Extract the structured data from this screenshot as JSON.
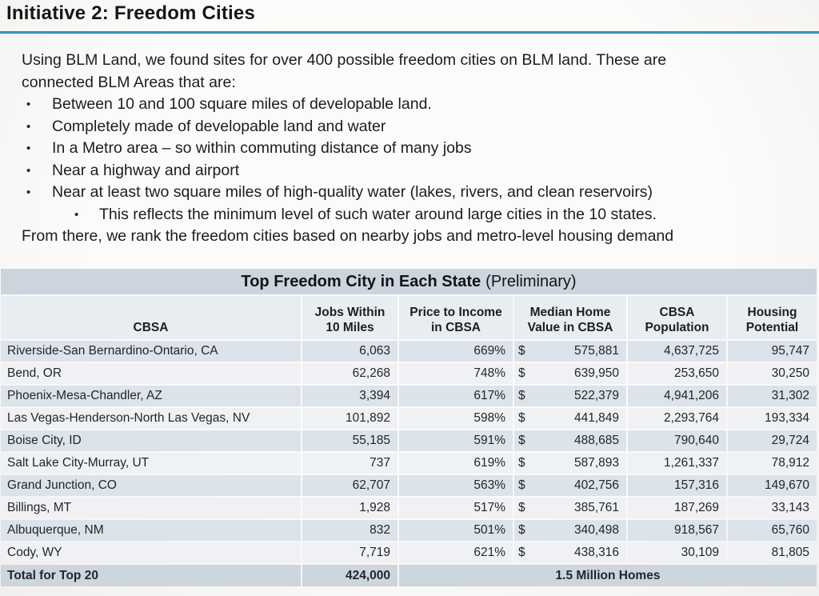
{
  "slide": {
    "title": "Initiative 2: Freedom Cities",
    "bullet_char": "•",
    "intro": [
      "Using BLM Land, we found sites for over 400 possible freedom cities on BLM land. These are",
      "connected BLM Areas that are:"
    ],
    "bullets": [
      "Between 10 and 100 square miles of developable land.",
      "Completely made of developable land and water",
      "In a Metro area – so within commuting distance of many jobs",
      "Near a highway and airport",
      "Near at least two square miles of high-quality water (lakes, rivers, and clean reservoirs)"
    ],
    "sub_bullet": "This reflects the minimum level of such water around large cities in the 10 states.",
    "closing": "From there, we rank the freedom cities based on nearby jobs and metro-level housing demand"
  },
  "table": {
    "title_bold": "Top Freedom City in Each State",
    "title_suffix": "(Preliminary)",
    "currency": "$",
    "columns": [
      {
        "lines": [
          "CBSA"
        ]
      },
      {
        "lines": [
          "Jobs Within",
          "10 Miles"
        ]
      },
      {
        "lines": [
          "Price to Income",
          "in CBSA"
        ]
      },
      {
        "lines": [
          "Median Home",
          "Value in  CBSA"
        ]
      },
      {
        "lines": [
          "CBSA",
          "Population"
        ]
      },
      {
        "lines": [
          "Housing",
          "Potential"
        ]
      }
    ],
    "rows": [
      {
        "cbsa": "Riverside-San Bernardino-Ontario, CA",
        "jobs": "6,063",
        "price": "669%",
        "median": "575,881",
        "population": "4,637,725",
        "housing": "95,747"
      },
      {
        "cbsa": "Bend, OR",
        "jobs": "62,268",
        "price": "748%",
        "median": "639,950",
        "population": "253,650",
        "housing": "30,250"
      },
      {
        "cbsa": "Phoenix-Mesa-Chandler, AZ",
        "jobs": "3,394",
        "price": "617%",
        "median": "522,379",
        "population": "4,941,206",
        "housing": "31,302"
      },
      {
        "cbsa": "Las Vegas-Henderson-North Las Vegas, NV",
        "jobs": "101,892",
        "price": "598%",
        "median": "441,849",
        "population": "2,293,764",
        "housing": "193,334"
      },
      {
        "cbsa": "Boise City, ID",
        "jobs": "55,185",
        "price": "591%",
        "median": "488,685",
        "population": "790,640",
        "housing": "29,724"
      },
      {
        "cbsa": "Salt Lake City-Murray, UT",
        "jobs": "737",
        "price": "619%",
        "median": "587,893",
        "population": "1,261,337",
        "housing": "78,912"
      },
      {
        "cbsa": "Grand Junction, CO",
        "jobs": "62,707",
        "price": "563%",
        "median": "402,756",
        "population": "157,316",
        "housing": "149,670"
      },
      {
        "cbsa": "Billings, MT",
        "jobs": "1,928",
        "price": "517%",
        "median": "385,761",
        "population": "187,269",
        "housing": "33,143"
      },
      {
        "cbsa": "Albuquerque, NM",
        "jobs": "832",
        "price": "501%",
        "median": "340,498",
        "population": "918,567",
        "housing": "65,760"
      },
      {
        "cbsa": "Cody, WY",
        "jobs": "7,719",
        "price": "621%",
        "median": "438,316",
        "population": "30,109",
        "housing": "81,805"
      }
    ],
    "total": {
      "label": "Total for Top 20",
      "jobs": "424,000",
      "merged": "1.5 Million Homes"
    }
  },
  "colors": {
    "accent_rule": "#2f97c8",
    "table_title_band": "#ccd5de",
    "header_bg": "#e8edf2",
    "stripe_dark": "#dce3ea",
    "stripe_light": "#eff1f4",
    "total_bg": "#cdd5dd",
    "text": "#1c1c1c"
  }
}
